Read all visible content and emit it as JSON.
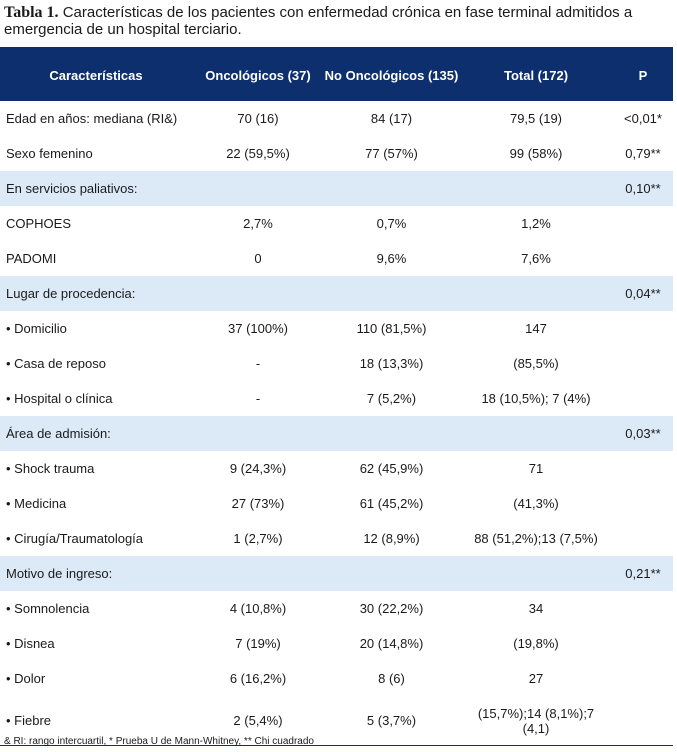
{
  "caption": {
    "label": "Tabla 1.",
    "text": " Características de los pacientes con enfermedad crónica en fase terminal admitidos a emergencia de un hospital terciario."
  },
  "table": {
    "headers": [
      "Características",
      "Oncológicos (37)",
      "No Oncológicos (135)",
      "Total (172)",
      "P"
    ],
    "rows": [
      {
        "band": false,
        "cells": [
          "Edad en años: mediana (RI&)",
          "70 (16)",
          "84 (17)",
          "79,5 (19)",
          "<0,01*"
        ]
      },
      {
        "band": false,
        "cells": [
          "Sexo femenino",
          "22 (59,5%)",
          "77 (57%)",
          "99 (58%)",
          "0,79**"
        ]
      },
      {
        "band": true,
        "cells": [
          "En servicios paliativos:",
          "",
          "",
          "",
          "0,10**"
        ]
      },
      {
        "band": false,
        "cells": [
          "COPHOES",
          "2,7%",
          "0,7%",
          "1,2%",
          ""
        ]
      },
      {
        "band": false,
        "cells": [
          "PADOMI",
          "0",
          "9,6%",
          "7,6%",
          ""
        ]
      },
      {
        "band": true,
        "cells": [
          "Lugar de procedencia:",
          "",
          "",
          "",
          "0,04**"
        ]
      },
      {
        "band": false,
        "cells": [
          "• Domicilio",
          "37 (100%)",
          "110 (81,5%)",
          "147",
          ""
        ]
      },
      {
        "band": false,
        "cells": [
          "• Casa de reposo",
          "-",
          "18 (13,3%)",
          "(85,5%)",
          ""
        ]
      },
      {
        "band": false,
        "cells": [
          "• Hospital o clínica",
          "-",
          "7 (5,2%)",
          "18 (10,5%); 7 (4%)",
          ""
        ]
      },
      {
        "band": true,
        "cells": [
          "Área de admisión:",
          "",
          "",
          "",
          "0,03**"
        ]
      },
      {
        "band": false,
        "cells": [
          "• Shock trauma",
          "9 (24,3%)",
          "62 (45,9%)",
          "71",
          ""
        ]
      },
      {
        "band": false,
        "cells": [
          "• Medicina",
          "27 (73%)",
          "61 (45,2%)",
          "(41,3%)",
          ""
        ]
      },
      {
        "band": false,
        "cells": [
          "• Cirugía/Traumatología",
          "1 (2,7%)",
          "12 (8,9%)",
          "88 (51,2%);13 (7,5%)",
          ""
        ]
      },
      {
        "band": true,
        "cells": [
          "Motivo de ingreso:",
          "",
          "",
          "",
          "0,21**"
        ]
      },
      {
        "band": false,
        "cells": [
          "• Somnolencia",
          "4 (10,8%)",
          "30 (22,2%)",
          "34",
          ""
        ]
      },
      {
        "band": false,
        "cells": [
          "• Disnea",
          "7 (19%)",
          "20 (14,8%)",
          "(19,8%)",
          ""
        ]
      },
      {
        "band": false,
        "cells": [
          "• Dolor",
          "6 (16,2%)",
          "8 (6)",
          "27",
          ""
        ]
      },
      {
        "band": false,
        "tall": true,
        "cells": [
          "• Fiebre",
          "2 (5,4%)",
          "5 (3,7%)",
          "(15,7%);14 (8,1%);7 (4,1)",
          ""
        ]
      }
    ]
  },
  "footnote": "& RI: rango intercuartil, * Prueba U de Mann-Whitney, ** Chi cuadrado"
}
